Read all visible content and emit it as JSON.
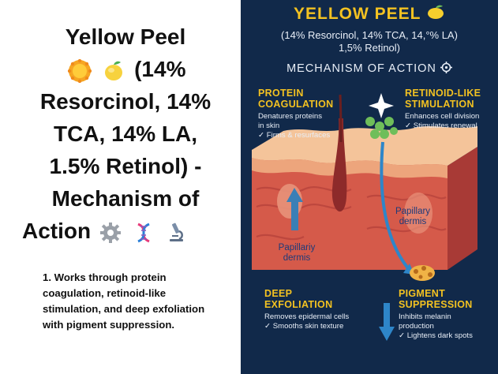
{
  "slide": {
    "title_lines": [
      "Yellow Peel",
      "(14%",
      "Resorcinol, 14%",
      "TCA, 14% LA,",
      "1.5% Retinol) -",
      "Mechanism of",
      "Action"
    ],
    "bullet": "1. Works through protein coagulation, retinoid-like stimulation, and deep exfoliation with pigment suppression.",
    "title_icons": [
      "sun-emoji",
      "lemon-emoji",
      "gear-emoji",
      "dna-emoji",
      "microscope-emoji"
    ]
  },
  "infographic": {
    "title": "YELLOW PEEL",
    "subtitle_line1": "(14% Resorcinol, 14% TCA, 14,°% LA)",
    "subtitle_line2": "1,5% Retinol)",
    "mechanism_heading": "MECHANISM OF ACTION",
    "sections": {
      "protein": {
        "heading_1": "PROTEIN",
        "heading_2": "COAGULATION",
        "desc_1": "Denatures proteins",
        "desc_2": "in skin",
        "check": "✓ Firms & resurfaces"
      },
      "retinoid": {
        "heading_1": "RETINOID-LIKE",
        "heading_2": "STIMULATION",
        "desc_1": "Enhances cell division",
        "check": "✓ Stimulates renewal"
      },
      "exfoliation": {
        "heading_1": "DEEP",
        "heading_2": "EXFOLIATION",
        "desc_1": "Removes epidermal cells",
        "check": "✓ Smooths skin texture"
      },
      "pigment": {
        "heading_1": "PIGMENT",
        "heading_2": "SUPPRESSION",
        "desc_1": "Inhibits melanin",
        "desc_2": "production",
        "check": "✓ Lightens dark spots"
      }
    },
    "labels": {
      "papillary_right_1": "Papillary",
      "papillary_right_2": "dermis",
      "papillary_left_1": "Papillariy",
      "papillary_left_2": "dermis"
    },
    "colors": {
      "background": "#11294a",
      "accent": "#f3c221",
      "skin_top": "#f0b98f",
      "dermis": "#d55a4a"
    }
  }
}
